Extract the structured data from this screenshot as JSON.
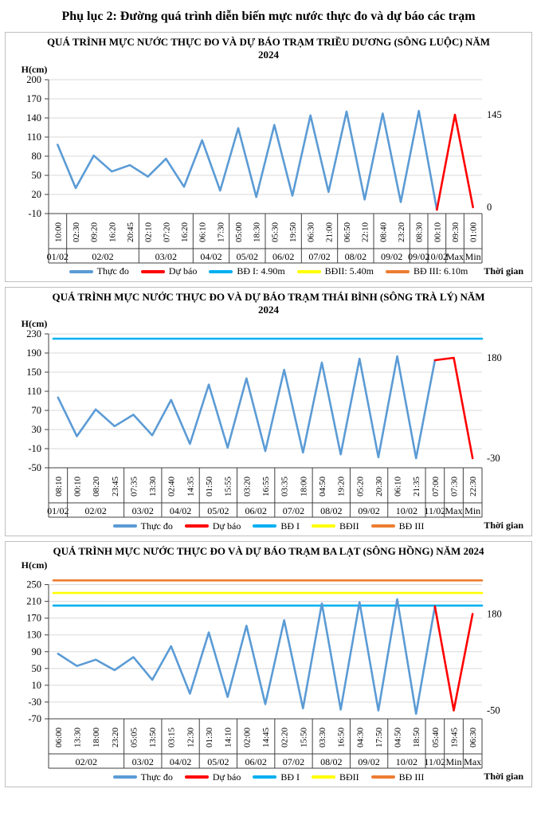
{
  "page_title": "Phụ lục 2: Đường quá trình diễn biến mực nước thực đo và dự báo các trạm",
  "colors": {
    "observed": "#5B9BD5",
    "forecast": "#FF0000",
    "alert1": "#00B0F0",
    "alert2": "#FFFF00",
    "alert3": "#ED7D31",
    "grid": "#D9D9D9",
    "axis": "#404040"
  },
  "chart_data": [
    {
      "type": "line",
      "station": "Triều Dương",
      "title": "QUÁ TRÌNH MỰC NƯỚC THỰC ĐO VÀ DỰ BÁO TRẠM TRIỀU DƯƠNG (SÔNG LUỘC) NĂM 2024",
      "y_label": "H(cm)",
      "y_ticks": [
        200,
        170,
        140,
        110,
        80,
        50,
        20,
        -10
      ],
      "y_plot_max": 200,
      "y_plot_min": -10,
      "grid": true,
      "legend_position": "bottom",
      "x_groups": [
        {
          "label": "01/02",
          "times": [
            "10:00"
          ]
        },
        {
          "label": "02/02",
          "times": [
            "02:30",
            "09:20",
            "16:20",
            "20:45"
          ]
        },
        {
          "label": "03/02",
          "times": [
            "02:10",
            "07:20",
            "16:20"
          ]
        },
        {
          "label": "04/02",
          "times": [
            "06:10",
            "17:30"
          ]
        },
        {
          "label": "05/02",
          "times": [
            "05:00",
            "18:30"
          ]
        },
        {
          "label": "06/02",
          "times": [
            "05:30",
            "19:50"
          ]
        },
        {
          "label": "07/02",
          "times": [
            "06:30",
            "21:00"
          ]
        },
        {
          "label": "08/02",
          "times": [
            "06:50",
            "22:10"
          ]
        },
        {
          "label": "09/02",
          "times": [
            "08:40",
            "23:20"
          ]
        },
        {
          "label": "09/02",
          "times": [
            "08:30"
          ]
        },
        {
          "label": "10/02",
          "times": [
            "00:10"
          ]
        },
        {
          "label": "Max",
          "times": [
            "09:30"
          ]
        },
        {
          "label": "Min",
          "times": [
            "01:00"
          ]
        }
      ],
      "series": [
        {
          "name": "Thực đo",
          "color": "#5B9BD5",
          "values": [
            98,
            30,
            81,
            56,
            66,
            48,
            76,
            32,
            105,
            26,
            124,
            16,
            129,
            18,
            144,
            24,
            150,
            12,
            147,
            8,
            151,
            -4
          ]
        },
        {
          "name": "Dự báo",
          "color": "#FF0000",
          "values": [
            145,
            0
          ]
        }
      ],
      "forecast_point_labels": [
        "145",
        "0"
      ],
      "alert_lines": [],
      "legend": [
        {
          "label": "Thực đo",
          "color": "#5B9BD5"
        },
        {
          "label": "Dự báo",
          "color": "#FF0000"
        },
        {
          "label": "BĐ I: 4.90m",
          "color": "#00B0F0"
        },
        {
          "label": "BĐII: 5.40m",
          "color": "#FFFF00"
        },
        {
          "label": "BĐ III: 6.10m",
          "color": "#ED7D31"
        }
      ],
      "time_axis_label": "Thời gian"
    },
    {
      "type": "line",
      "station": "Thái Bình",
      "title": "QUÁ TRÌNH MỰC NƯỚC THỰC ĐO VÀ DỰ BÁO TRẠM THÁI BÌNH (SÔNG TRÀ LÝ) NĂM 2024",
      "y_label": "H(cm)",
      "y_ticks": [
        230,
        190,
        150,
        110,
        70,
        30,
        -10,
        -50
      ],
      "y_plot_max": 230,
      "y_plot_min": -50,
      "grid": true,
      "legend_position": "bottom",
      "x_groups": [
        {
          "label": "01/02",
          "times": [
            "08:10"
          ]
        },
        {
          "label": "02/02",
          "times": [
            "00:10",
            "08:20",
            "23:45"
          ]
        },
        {
          "label": "03/02",
          "times": [
            "07:35",
            "13:30"
          ]
        },
        {
          "label": "04/02",
          "times": [
            "02:40",
            "14:35"
          ]
        },
        {
          "label": "05/02",
          "times": [
            "01:50",
            "15:55"
          ]
        },
        {
          "label": "06/02",
          "times": [
            "03:20",
            "16:55"
          ]
        },
        {
          "label": "07/02",
          "times": [
            "03:35",
            "18:00"
          ]
        },
        {
          "label": "08/02",
          "times": [
            "04:50",
            "19:20"
          ]
        },
        {
          "label": "09/02",
          "times": [
            "05:20",
            "20:30"
          ]
        },
        {
          "label": "10/02",
          "times": [
            "06:10",
            "21:35"
          ]
        },
        {
          "label": "11/02",
          "times": [
            "07:00"
          ]
        },
        {
          "label": "Max",
          "times": [
            "07:30"
          ]
        },
        {
          "label": "Min",
          "times": [
            "22:30"
          ]
        }
      ],
      "series": [
        {
          "name": "Thực đo",
          "color": "#5B9BD5",
          "values": [
            97,
            16,
            72,
            37,
            61,
            18,
            92,
            0,
            124,
            -8,
            137,
            -15,
            155,
            -18,
            170,
            -22,
            178,
            -28,
            183,
            -30,
            175
          ]
        },
        {
          "name": "Dự báo",
          "color": "#FF0000",
          "values": [
            180,
            -30
          ]
        }
      ],
      "forecast_point_labels": [
        "180",
        "-30"
      ],
      "alert_lines": [
        {
          "label": "BĐ I",
          "value": 220,
          "color": "#00B0F0"
        }
      ],
      "legend": [
        {
          "label": "Thực đo",
          "color": "#5B9BD5"
        },
        {
          "label": "Dự báo",
          "color": "#FF0000"
        },
        {
          "label": "BĐ I",
          "color": "#00B0F0"
        },
        {
          "label": "BĐII",
          "color": "#FFFF00"
        },
        {
          "label": "BĐ III",
          "color": "#ED7D31"
        }
      ],
      "time_axis_label": "Thời gian"
    },
    {
      "type": "line",
      "station": "Ba Lạt",
      "title": "QUÁ TRÌNH MỰC NƯỚC THỰC ĐO VÀ DỰ BÁO TRẠM BA LẠT (SÔNG HỒNG) NĂM 2024",
      "y_label": "H(cm)",
      "y_ticks": [
        250,
        210,
        170,
        130,
        90,
        50,
        10,
        -30,
        -70
      ],
      "y_plot_max": 272,
      "y_plot_min": -70,
      "grid": true,
      "legend_position": "bottom",
      "x_groups": [
        {
          "label": "02/02",
          "times": [
            "06:00",
            "13:30",
            "18:00",
            "23:20"
          ]
        },
        {
          "label": "03/02",
          "times": [
            "05:05",
            "13:50"
          ]
        },
        {
          "label": "04/02",
          "times": [
            "03:15",
            "12:30"
          ]
        },
        {
          "label": "05/02",
          "times": [
            "01:30",
            "14:10"
          ]
        },
        {
          "label": "06/02",
          "times": [
            "02:00",
            "14:45"
          ]
        },
        {
          "label": "07/02",
          "times": [
            "02:20",
            "15:50"
          ]
        },
        {
          "label": "08/02",
          "times": [
            "03:30",
            "16:50"
          ]
        },
        {
          "label": "09/02",
          "times": [
            "04:30",
            "17:50"
          ]
        },
        {
          "label": "10/02",
          "times": [
            "04:50",
            "18:50"
          ]
        },
        {
          "label": "11/02",
          "times": [
            "05:40"
          ]
        },
        {
          "label": "Min",
          "times": [
            "19:45"
          ]
        },
        {
          "label": "Max",
          "times": [
            "06:30"
          ]
        }
      ],
      "series": [
        {
          "name": "Thực đo",
          "color": "#5B9BD5",
          "values": [
            85,
            56,
            71,
            46,
            77,
            23,
            103,
            -10,
            136,
            -18,
            152,
            -35,
            165,
            -45,
            205,
            -48,
            208,
            -50,
            215,
            -58,
            198
          ]
        },
        {
          "name": "Dự báo",
          "color": "#FF0000",
          "values": [
            -50,
            180
          ]
        }
      ],
      "forecast_point_labels": [
        "-50",
        "180"
      ],
      "alert_lines": [
        {
          "label": "BĐ I",
          "value": 200,
          "color": "#00B0F0"
        },
        {
          "label": "BĐII",
          "value": 230,
          "color": "#FFFF00"
        },
        {
          "label": "BĐ III",
          "value": 260,
          "color": "#ED7D31"
        }
      ],
      "legend": [
        {
          "label": "Thực đo",
          "color": "#5B9BD5"
        },
        {
          "label": "Dự báo",
          "color": "#FF0000"
        },
        {
          "label": "BĐ I",
          "color": "#00B0F0"
        },
        {
          "label": "BĐII",
          "color": "#FFFF00"
        },
        {
          "label": "BĐ III",
          "color": "#ED7D31"
        }
      ],
      "time_axis_label": "Thời gian"
    }
  ]
}
